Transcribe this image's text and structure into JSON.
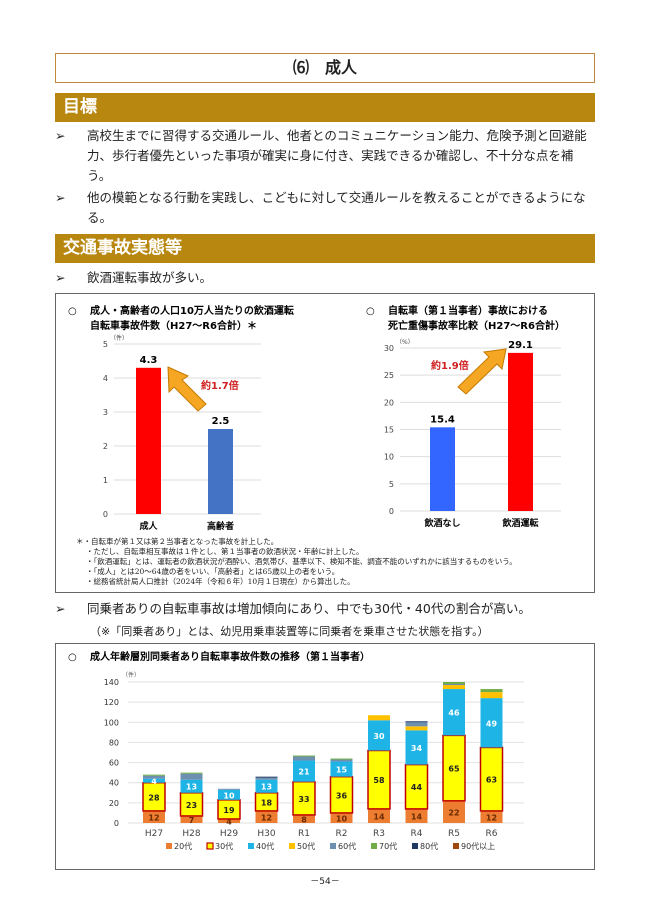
{
  "title": "⑹　成人",
  "sections": {
    "goal": "目標",
    "actual": "交通事故実態等"
  },
  "bullet_marker": "➢",
  "goals": [
    "高校生までに習得する交通ルール、他者とのコミュニケーション能力、危険予測と回避能力、歩行者優先といった事項が確実に身に付き、実践できるか確認し、不十分な点を補う。",
    "他の模範となる行動を実践し、こどもに対して交通ルールを教えることができるようになる。"
  ],
  "facts": [
    "飲酒運転事故が多い。",
    "同乗者ありの自転車事故は増加傾向にあり、中でも30代・40代の割合が高い。"
  ],
  "fact2_note": "（※「同乗者あり」とは、幼児用乗車装置等に同乗者を乗車させた状態を指す。）",
  "notes": [
    "＊・自転車が第１又は第２当事者となった事故を計上した。",
    "・ただし、自転車相互事故は１件とし、第１当事者の飲酒状況・年齢に計上した。",
    "・「飲酒運転」とは、運転者の飲酒状況が酒酔い、酒気帯び、基準以下、検知不能、調査不能のいずれかに該当するものをいう。",
    "・「成人」とは20～64歳の者をいい、「高齢者」とは65歳以上の者をいう。",
    "・総務省統計局人口推計（2024年（令和６年）10月１日現在）から算出した。"
  ],
  "page_number": "－54－",
  "chart_data": [
    {
      "type": "bar",
      "title": "○　成人・高齢者の人口10万人当たりの飲酒運転自転車事故件数（H27～R6合計）＊",
      "title_lines": [
        "成人・高齢者の人口10万人当たりの飲酒運転",
        "自転車事故件数（H27～R6合計）＊"
      ],
      "unit": "（件）",
      "categories": [
        "成人",
        "高齢者"
      ],
      "values": [
        4.3,
        2.5
      ],
      "colors": [
        "#ff0000",
        "#4472c4"
      ],
      "ylim": [
        0,
        5
      ],
      "yticks": [
        0,
        1,
        2,
        3,
        4,
        5
      ],
      "annotation": "約1.7倍"
    },
    {
      "type": "bar",
      "title": "○　自転車（第１当事者）事故における死亡重傷事故率比較（H27～R6合計）",
      "title_lines": [
        "自転車（第１当事者）事故における",
        "死亡重傷事故率比較（H27～R6合計）"
      ],
      "unit": "（%）",
      "categories": [
        "飲酒なし",
        "飲酒運転"
      ],
      "values": [
        15.4,
        29.1
      ],
      "colors": [
        "#3366ff",
        "#ff0000"
      ],
      "ylim": [
        0,
        30
      ],
      "yticks": [
        0,
        5,
        10,
        15,
        20,
        25,
        30
      ],
      "annotation": "約1.9倍"
    },
    {
      "type": "bar",
      "stacked": true,
      "title": "成人年齢層別同乗者あり自転車事故件数の推移（第１当事者）",
      "unit": "（件）",
      "categories": [
        "H27",
        "H28",
        "H29",
        "H30",
        "R1",
        "R2",
        "R3",
        "R4",
        "R5",
        "R6"
      ],
      "ylim": [
        0,
        140
      ],
      "yticks": [
        0,
        20,
        40,
        60,
        80,
        100,
        120,
        140
      ],
      "grid": true,
      "legend": "bottom",
      "series": [
        {
          "name": "20代",
          "color": "#ed7d31",
          "labeled": true,
          "values": [
            12,
            7,
            4,
            12,
            8,
            10,
            14,
            14,
            22,
            12
          ]
        },
        {
          "name": "30代",
          "color": "#ffff00",
          "border": "#c00000",
          "labeled": true,
          "values": [
            28,
            23,
            19,
            18,
            33,
            36,
            58,
            44,
            65,
            63
          ]
        },
        {
          "name": "40代",
          "color": "#1fb4e6",
          "labeled": true,
          "values": [
            4,
            13,
            10,
            13,
            21,
            15,
            30,
            34,
            46,
            49
          ]
        },
        {
          "name": "50代",
          "color": "#ffc000",
          "values": [
            0,
            0,
            0,
            0,
            0,
            0,
            5,
            4,
            4,
            6
          ]
        },
        {
          "name": "60代",
          "color": "#6d8fb0",
          "values": [
            3,
            6,
            1,
            2,
            4,
            2,
            0,
            4,
            1,
            0
          ]
        },
        {
          "name": "70代",
          "color": "#70ad47",
          "values": [
            1,
            1,
            0,
            0,
            1,
            1,
            0,
            0,
            2,
            3
          ]
        },
        {
          "name": "80代",
          "color": "#1f3864",
          "values": [
            0,
            0,
            0,
            1,
            0,
            0,
            0,
            1,
            0,
            0
          ]
        },
        {
          "name": "90代以上",
          "color": "#9e480e",
          "values": [
            0,
            0,
            0,
            0,
            0,
            0,
            0,
            0,
            0,
            0
          ]
        }
      ]
    }
  ]
}
